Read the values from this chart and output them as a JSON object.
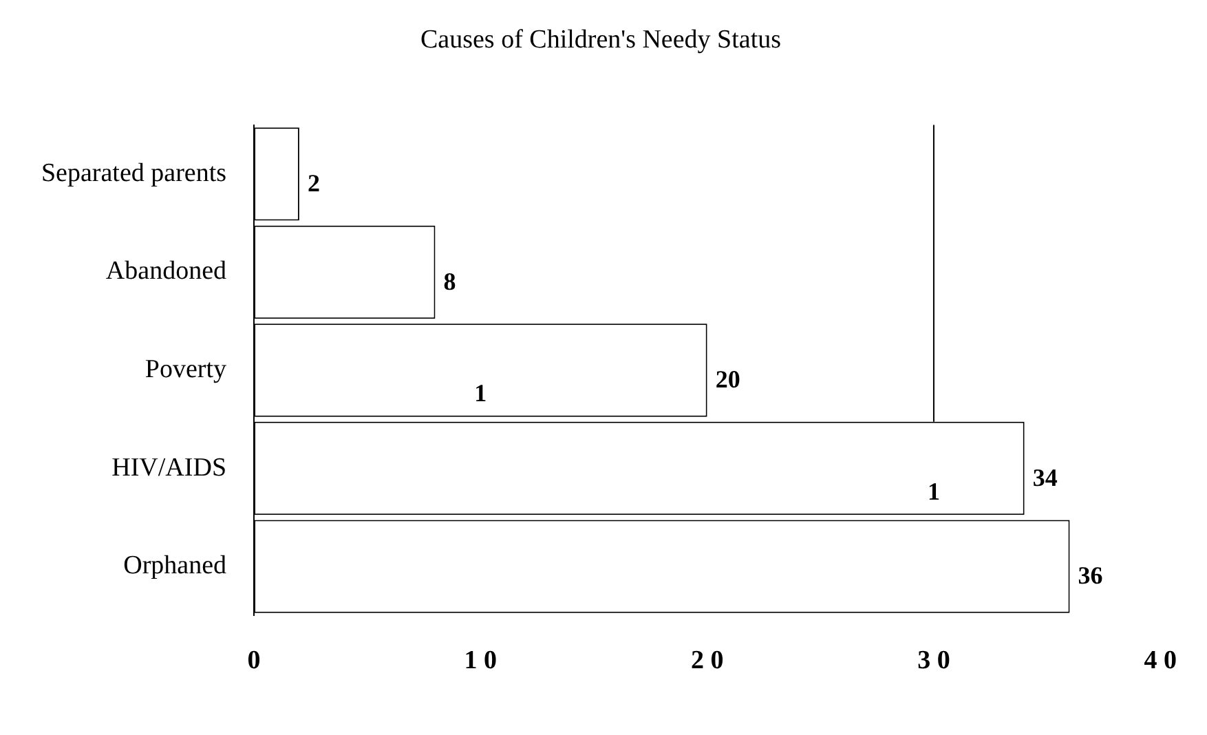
{
  "chart_data": {
    "type": "bar",
    "orientation": "horizontal",
    "title": "Causes of Children's Needy Status",
    "categories": [
      "Separated parents",
      "Abandoned",
      "Poverty",
      "HIV/AIDS",
      "Orphaned"
    ],
    "values": [
      2,
      8,
      20,
      34,
      36
    ],
    "color": "#ffffff",
    "data_labels": true,
    "xlim": [
      0,
      40
    ],
    "xticks": [
      0,
      10,
      20,
      30,
      40
    ],
    "ref_lines": [
      {
        "axis": "x",
        "value": 30
      }
    ],
    "annotations": [
      "1",
      "1"
    ],
    "grid": false,
    "legend": false
  }
}
